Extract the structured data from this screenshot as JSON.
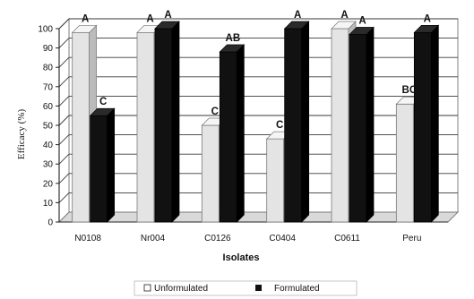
{
  "chart_data": {
    "type": "bar",
    "title": "",
    "xlabel": "Isolates",
    "ylabel": "Efficacy (%)",
    "ylim": [
      0,
      100
    ],
    "yticks": [
      "0",
      "10",
      "20",
      "30",
      "40",
      "50",
      "60",
      "70",
      "80",
      "90",
      "100"
    ],
    "categories": [
      "N0108",
      "Nr004",
      "C0126",
      "C0404",
      "C0611",
      "Peru"
    ],
    "series": [
      {
        "name": "Unformulated",
        "values": [
          98,
          98,
          50,
          43,
          100,
          61
        ],
        "letters": [
          "A",
          "A",
          "C",
          "C",
          "A",
          "BC"
        ],
        "color": "#e4e4e4"
      },
      {
        "name": "Formulated",
        "values": [
          55,
          100,
          88,
          100,
          97,
          98
        ],
        "letters": [
          "C",
          "A",
          "AB",
          "A",
          "A",
          "A"
        ],
        "color": "#111111"
      }
    ],
    "grid": true,
    "legend_position": "bottom"
  }
}
